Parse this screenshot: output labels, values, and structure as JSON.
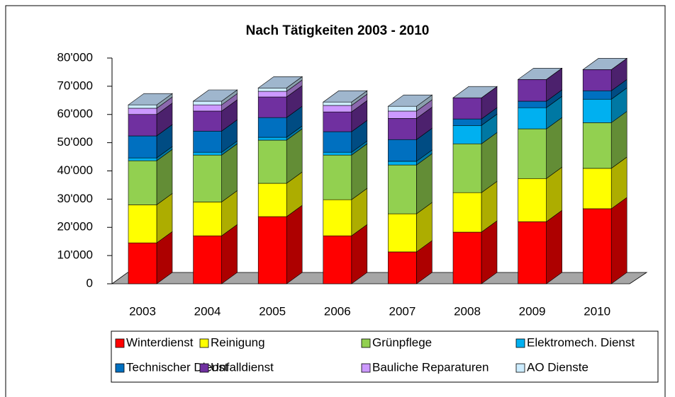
{
  "chart_data": {
    "type": "bar3d_stacked",
    "title": "Nach Tätigkeiten 2003 - 2010",
    "categories": [
      "2003",
      "2004",
      "2005",
      "2006",
      "2007",
      "2008",
      "2009",
      "2010"
    ],
    "series": [
      {
        "name": "Winterdienst",
        "color": "#ff0000",
        "values": [
          14500,
          17000,
          23800,
          17000,
          11300,
          18300,
          22000,
          26600
        ]
      },
      {
        "name": "Reinigung",
        "color": "#ffff00",
        "values": [
          13500,
          12000,
          11800,
          12800,
          13500,
          14000,
          15300,
          14300
        ]
      },
      {
        "name": "Grünpflege",
        "color": "#92d050",
        "values": [
          15600,
          16600,
          15300,
          15800,
          17300,
          17300,
          17600,
          16200
        ]
      },
      {
        "name": "Elektromech. Dienst",
        "color": "#00b0f0",
        "values": [
          1000,
          1000,
          1000,
          1000,
          1300,
          6500,
          7500,
          8300
        ]
      },
      {
        "name": "Technischer Dienst",
        "color": "#0070c0",
        "values": [
          7800,
          7500,
          7000,
          7300,
          7700,
          2300,
          2300,
          3000
        ]
      },
      {
        "name": "Unfalldienst",
        "color": "#7030a0",
        "values": [
          7600,
          7100,
          7300,
          7000,
          7500,
          7500,
          7700,
          7500
        ]
      },
      {
        "name": "Bauliche Reparaturen",
        "color": "#cc99ff",
        "values": [
          2200,
          2200,
          2000,
          2300,
          2600,
          0,
          0,
          0
        ]
      },
      {
        "name": "AO Dienste",
        "color": "#ccecff",
        "values": [
          1200,
          1300,
          1200,
          1200,
          1700,
          0,
          0,
          0
        ]
      }
    ],
    "ylim": [
      0,
      80000
    ],
    "yticks": [
      0,
      {
        "value": 10000,
        "label": "10'000"
      },
      {
        "value": 20000,
        "label": "20'000"
      },
      {
        "value": 30000,
        "label": "30'000"
      },
      {
        "value": 40000,
        "label": "40'000"
      },
      {
        "value": 50000,
        "label": "50'000"
      },
      {
        "value": 60000,
        "label": "60'000"
      },
      {
        "value": 70000,
        "label": "70'000"
      },
      {
        "value": 80000,
        "label": "80'000"
      }
    ],
    "grid": false,
    "legend": "bottom"
  }
}
